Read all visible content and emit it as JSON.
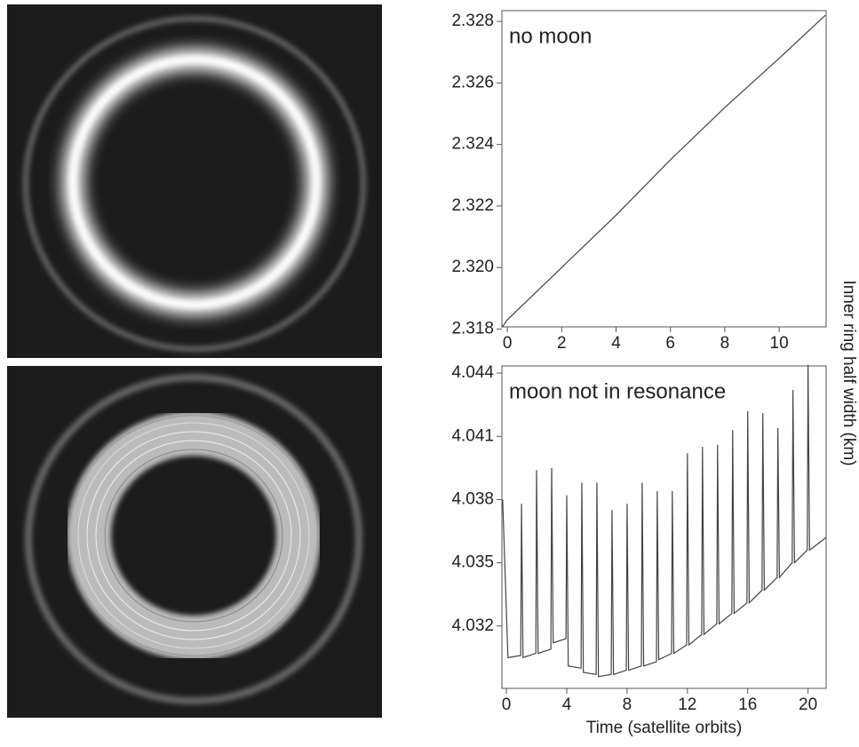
{
  "chart_data": [
    {
      "type": "line",
      "annotation": "no moon",
      "x": [
        -0.2,
        0,
        2,
        4,
        6,
        8,
        10,
        11.7
      ],
      "series": [
        {
          "color": "#444444",
          "values": [
            2.31805,
            2.3183,
            2.32,
            2.3217,
            2.3235,
            2.3252,
            2.3268,
            2.3282
          ]
        }
      ],
      "xlim": [
        -0.2,
        11.73
      ],
      "ylim": [
        2.31807,
        2.32835
      ],
      "xticks": [
        0,
        2,
        4,
        6,
        8,
        10
      ],
      "yticks": [
        2.318,
        {
          "value": 2.32,
          "label": "2.320"
        },
        2.322,
        2.324,
        2.326,
        2.328
      ]
    },
    {
      "type": "line",
      "annotation": "moon not in resonance",
      "xlabel": "Time (satellite orbits)",
      "ylabel": "Inner ring half width (km)",
      "x": [
        -0.25,
        0.1,
        0.95,
        1,
        1.1,
        1.95,
        2,
        2.1,
        2.95,
        3,
        3.1,
        3.95,
        4,
        4.1,
        4.95,
        5,
        5.1,
        5.95,
        6,
        6.1,
        6.95,
        7,
        7.1,
        7.95,
        8,
        8.1,
        8.95,
        9,
        9.1,
        9.95,
        10,
        10.1,
        10.95,
        11,
        11.1,
        11.95,
        12,
        12.1,
        12.95,
        13,
        13.1,
        13.95,
        14,
        14.1,
        14.95,
        15,
        15.1,
        15.95,
        16,
        16.1,
        16.95,
        17,
        17.1,
        17.95,
        18,
        18.1,
        18.95,
        19,
        19.1,
        19.95,
        20,
        20.1,
        21.2
      ],
      "series": [
        {
          "color": "#444444",
          "values": [
            4.038,
            4.0305,
            4.0306,
            4.0378,
            4.0305,
            4.0307,
            4.0394,
            4.0307,
            4.0309,
            4.0395,
            4.0312,
            4.0314,
            4.0382,
            4.0301,
            4.03,
            4.0388,
            4.0298,
            4.0297,
            4.0388,
            4.0296,
            4.0297,
            4.0375,
            4.0297,
            4.0299,
            4.0378,
            4.0299,
            4.0301,
            4.0388,
            4.0301,
            4.0303,
            4.0384,
            4.0304,
            4.0307,
            4.0384,
            4.0307,
            4.0311,
            4.0402,
            4.0311,
            4.0316,
            4.0405,
            4.0316,
            4.0321,
            4.0406,
            4.0321,
            4.0326,
            4.0413,
            4.0326,
            4.0331,
            4.0422,
            4.0331,
            4.0337,
            4.0421,
            4.0337,
            4.0343,
            4.0414,
            4.0343,
            4.035,
            4.0432,
            4.035,
            4.0356,
            4.0444,
            4.0356,
            4.0362
          ]
        }
      ],
      "xlim": [
        -0.3,
        21.2
      ],
      "ylim": [
        4.02904,
        4.04434
      ],
      "xticks": [
        0,
        4,
        8,
        12,
        16,
        20
      ],
      "yticks": [
        4.032,
        4.035,
        4.038,
        4.041,
        4.044
      ]
    }
  ]
}
